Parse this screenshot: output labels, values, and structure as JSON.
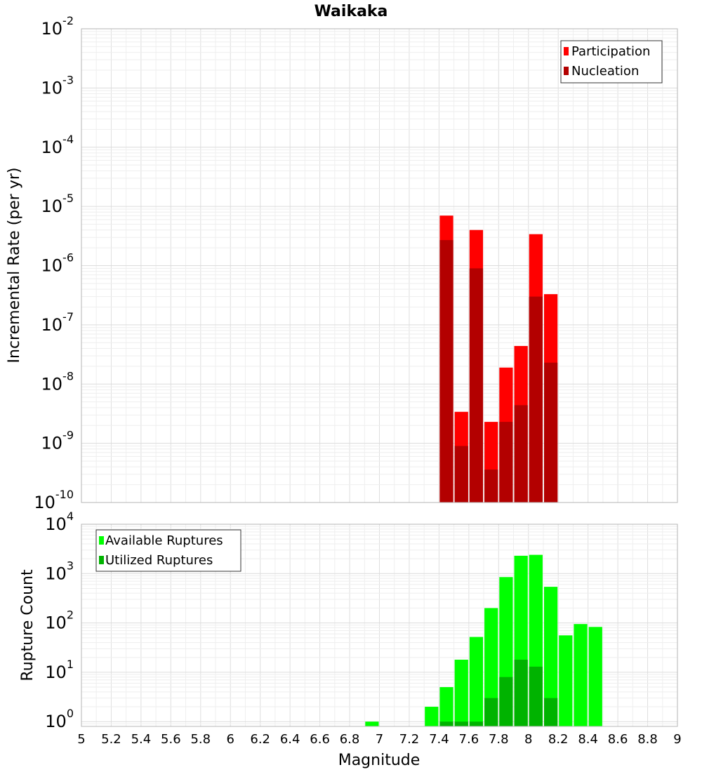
{
  "chart_data": [
    {
      "type": "bar",
      "title": "Waikaka",
      "xlabel": "",
      "ylabel": "Incremental Rate (per yr)",
      "yscale": "log",
      "xlim": [
        5,
        9
      ],
      "ylim": [
        1e-10,
        0.01
      ],
      "ytick_exponents": [
        "-10",
        "-9",
        "-8",
        "-7",
        "-6",
        "-5",
        "-4",
        "-3",
        "-2"
      ],
      "x": [
        7.45,
        7.55,
        7.65,
        7.75,
        7.85,
        7.95,
        8.05,
        8.15
      ],
      "series": [
        {
          "name": "Participation",
          "color": "#ff0000",
          "values": [
            7e-06,
            3.4e-09,
            4e-06,
            2.3e-09,
            1.9e-08,
            4.4e-08,
            3.4e-06,
            3.3e-07
          ]
        },
        {
          "name": "Nucleation",
          "color": "#b30000",
          "values": [
            2.7e-06,
            9e-10,
            9e-07,
            3.6e-10,
            2.3e-09,
            4.4e-09,
            3e-07,
            2.3e-08
          ]
        }
      ],
      "legend": [
        "Participation",
        "Nucleation"
      ],
      "legend_position": "top-right"
    },
    {
      "type": "bar",
      "title": "",
      "xlabel": "Magnitude",
      "ylabel": "Rupture Count",
      "yscale": "log",
      "xlim": [
        5,
        9
      ],
      "ylim": [
        0.8,
        10000
      ],
      "ytick_exponents": [
        "0",
        "1",
        "2",
        "3",
        "4"
      ],
      "xticks": [
        "5",
        "5.2",
        "5.4",
        "5.6",
        "5.8",
        "6",
        "6.2",
        "6.4",
        "6.6",
        "6.8",
        "7",
        "7.2",
        "7.4",
        "7.6",
        "7.8",
        "8",
        "8.2",
        "8.4",
        "8.6",
        "8.8",
        "9"
      ],
      "x": [
        6.95,
        7.35,
        7.45,
        7.55,
        7.65,
        7.75,
        7.85,
        7.95,
        8.05,
        8.15,
        8.25,
        8.35,
        8.45
      ],
      "series": [
        {
          "name": "Available Ruptures",
          "color": "#00ff00",
          "values": [
            1,
            2,
            5,
            18,
            52,
            200,
            850,
            2300,
            2400,
            540,
            56,
            95,
            83
          ]
        },
        {
          "name": "Utilized Ruptures",
          "color": "#00b300",
          "values": [
            0,
            0,
            1,
            1,
            1,
            3,
            8,
            18,
            13,
            3,
            0,
            0,
            0
          ]
        }
      ],
      "legend": [
        "Available Ruptures",
        "Utilized Ruptures"
      ],
      "legend_position": "top-left"
    }
  ]
}
